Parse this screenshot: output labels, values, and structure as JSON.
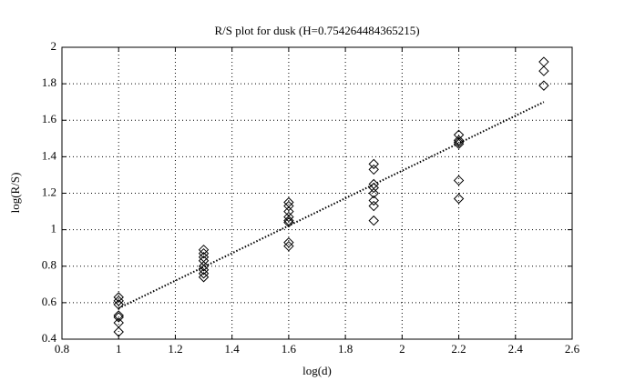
{
  "chart_data": {
    "type": "scatter",
    "title": "R/S plot for dusk (H=0.754264484365215)",
    "x_label": "log(d)",
    "y_label": "log(R/S)",
    "xlim": [
      0.8,
      2.6
    ],
    "xticks": [
      0.8,
      1,
      1.2,
      1.4,
      1.6,
      1.8,
      2,
      2.2,
      2.4,
      2.6
    ],
    "ylim": [
      0.4,
      2
    ],
    "yticks": [
      0.4,
      0.6,
      0.8,
      1,
      1.2,
      1.4,
      1.6,
      1.8,
      2
    ],
    "grid": true,
    "series": [
      {
        "marker": "diamond",
        "color": "#000000",
        "x": [
          1,
          1,
          1,
          1,
          1,
          1,
          1,
          1.3,
          1.3,
          1.3,
          1.3,
          1.3,
          1.3,
          1.3,
          1.3,
          1.6,
          1.6,
          1.6,
          1.6,
          1.6,
          1.6,
          1.6,
          1.6,
          1.9,
          1.9,
          1.9,
          1.9,
          1.9,
          1.9,
          1.9,
          1.9,
          2.2,
          2.2,
          2.2,
          2.2,
          2.2,
          2.2,
          2.5,
          2.5,
          2.5
        ],
        "values": [
          0.63,
          0.61,
          0.59,
          0.53,
          0.52,
          0.49,
          0.44,
          0.89,
          0.87,
          0.85,
          0.83,
          0.8,
          0.78,
          0.76,
          0.74,
          1.15,
          1.13,
          1.1,
          1.07,
          1.05,
          1.04,
          0.93,
          0.91,
          1.36,
          1.33,
          1.25,
          1.23,
          1.2,
          1.16,
          1.13,
          1.05,
          1.52,
          1.49,
          1.48,
          1.47,
          1.27,
          1.17,
          1.92,
          1.87,
          1.79
        ]
      },
      {
        "marker": "none",
        "line": "dotted",
        "color": "#000000",
        "x": [
          1,
          2.5
        ],
        "values": [
          0.57,
          1.7
        ]
      }
    ]
  }
}
